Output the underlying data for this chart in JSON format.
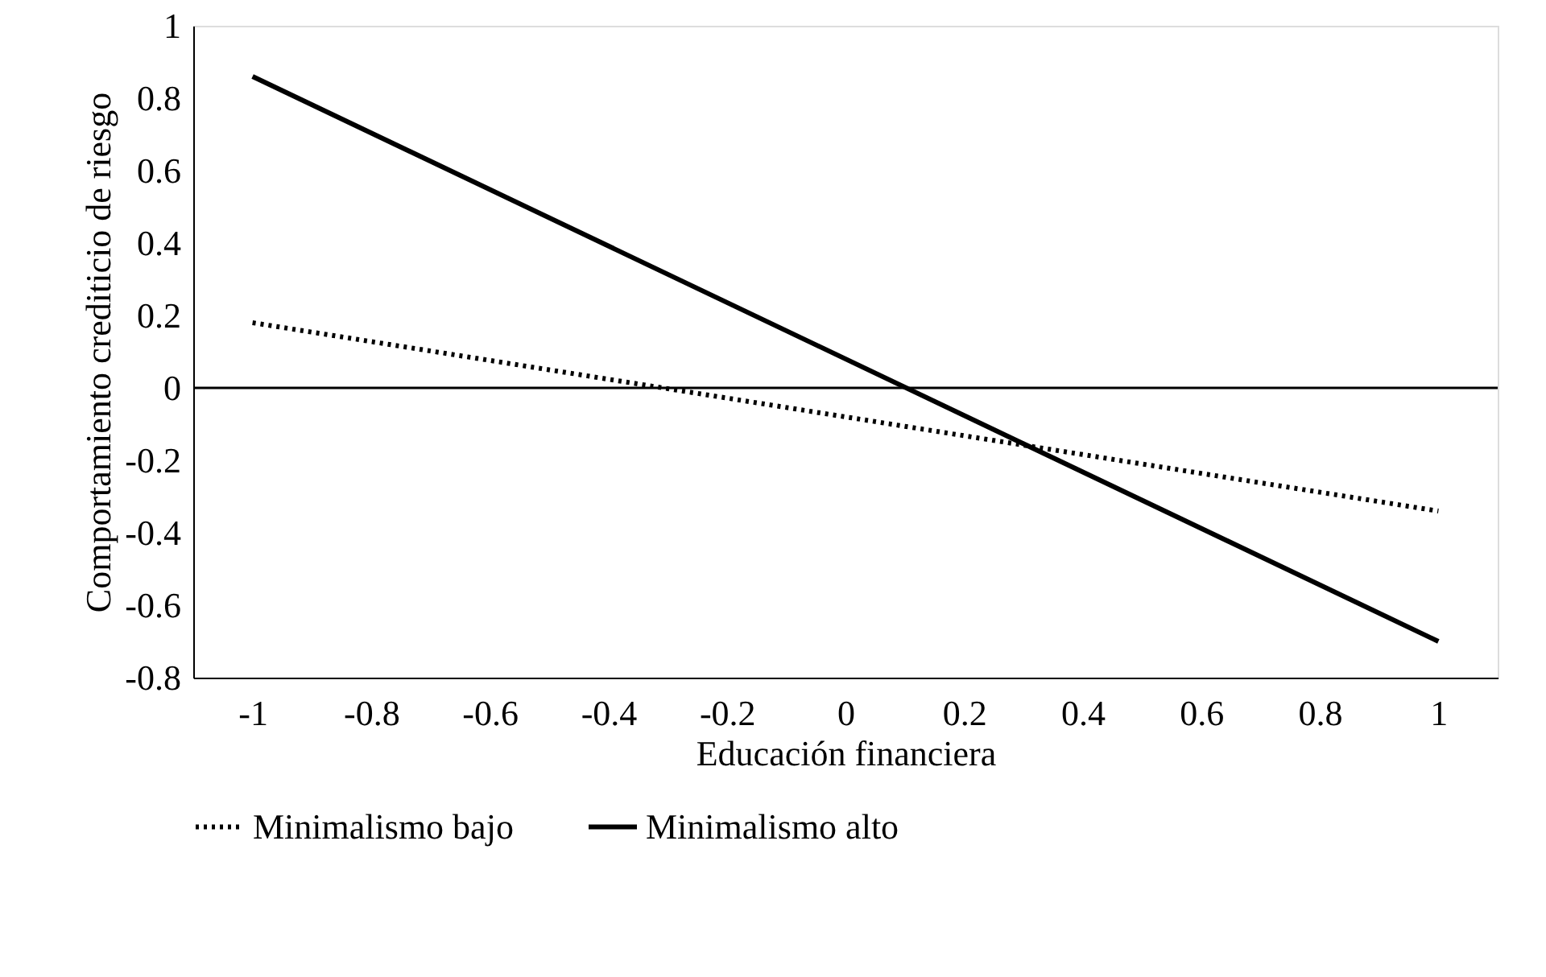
{
  "chart_data": {
    "type": "line",
    "xlabel": "Educación financiera",
    "ylabel": "Comportamiento crediticio de riesgo",
    "x": [
      -1,
      1
    ],
    "series": [
      {
        "name": "Minimalismo bajo",
        "color": "#000000",
        "values": [
          0.18,
          -0.34
        ],
        "line_style": "dotted"
      },
      {
        "name": "Minimalismo alto",
        "color": "#000000",
        "values": [
          0.86,
          -0.7
        ],
        "line_style": "solid"
      }
    ],
    "xlim": [
      -1.1,
      1.1
    ],
    "xticks": [
      -1,
      -0.8,
      -0.6,
      -0.4,
      -0.2,
      0,
      0.2,
      0.4,
      0.6,
      0.8,
      1
    ],
    "ylim": [
      -0.8,
      1
    ],
    "yticks": [
      -0.8,
      -0.6,
      -0.4,
      -0.2,
      0,
      0.2,
      0.4,
      0.6,
      0.8,
      1
    ],
    "ref_lines": [
      {
        "axis": "y",
        "value": 0
      }
    ],
    "grid": false,
    "legend": "bottom",
    "marker": "none"
  }
}
